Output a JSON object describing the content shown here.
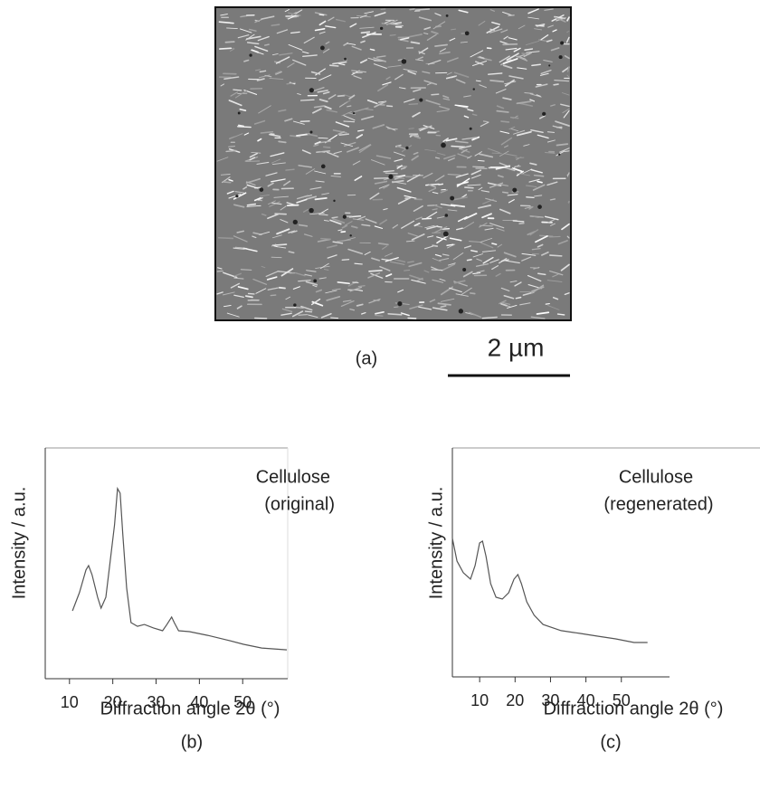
{
  "panel_a": {
    "label": "(a)",
    "scale_bar": "2 µm"
  },
  "chart_data": [
    {
      "type": "line",
      "annotation": [
        "Cellulose",
        "(original)"
      ],
      "x_label": "Diffraction angle 2θ (°)",
      "y_label": "Intensity / a.u.",
      "caption": "(b)",
      "xlim": [
        4.4,
        60.4
      ],
      "ylim": [
        0,
        100
      ],
      "xticks": [
        10,
        20,
        30,
        40,
        50
      ],
      "series": [
        {
          "color": "#555555",
          "x": [
            10.7,
            12.3,
            13.8,
            14.4,
            15.2,
            16.5,
            17.3,
            18.4,
            19.4,
            20.4,
            21.1,
            21.7,
            22.3,
            23.2,
            24.2,
            25.7,
            27.3,
            29.4,
            31.5,
            32.5,
            33.6,
            34.2,
            35.2,
            37.7,
            41.9,
            46.1,
            50.2,
            54.4,
            60.2
          ],
          "values": [
            29.4,
            37.3,
            47.1,
            49.0,
            45.1,
            35.3,
            30.6,
            35.3,
            51.0,
            66.7,
            82.4,
            80.4,
            62.7,
            39.2,
            24.3,
            22.7,
            23.5,
            22.0,
            20.8,
            23.5,
            26.7,
            24.3,
            20.8,
            20.4,
            18.8,
            16.9,
            14.9,
            13.3,
            12.5
          ]
        }
      ]
    },
    {
      "type": "line",
      "annotation": [
        "Cellulose",
        "(regenerated)"
      ],
      "x_label": "Diffraction angle 2θ (°)",
      "y_label": "Intensity / a.u.",
      "caption": "(c)",
      "xlim": [
        2.3,
        63.6
      ],
      "ylim": [
        0,
        100
      ],
      "xticks": [
        10,
        20,
        30,
        40,
        50
      ],
      "series": [
        {
          "color": "#555555",
          "x": [
            2.3,
            3.6,
            5.4,
            7.4,
            8.7,
            10.0,
            10.8,
            11.8,
            13.1,
            14.6,
            16.4,
            18.2,
            19.7,
            20.8,
            21.8,
            23.3,
            25.4,
            27.9,
            33.0,
            38.2,
            43.3,
            48.4,
            53.6,
            57.4
          ],
          "values": [
            60.5,
            50.6,
            45.5,
            42.7,
            48.6,
            58.5,
            59.3,
            52.6,
            40.7,
            34.8,
            34.0,
            36.8,
            42.7,
            44.7,
            40.7,
            32.8,
            26.9,
            22.9,
            20.2,
            19.0,
            17.8,
            16.6,
            15.0,
            15.0
          ]
        }
      ]
    }
  ]
}
